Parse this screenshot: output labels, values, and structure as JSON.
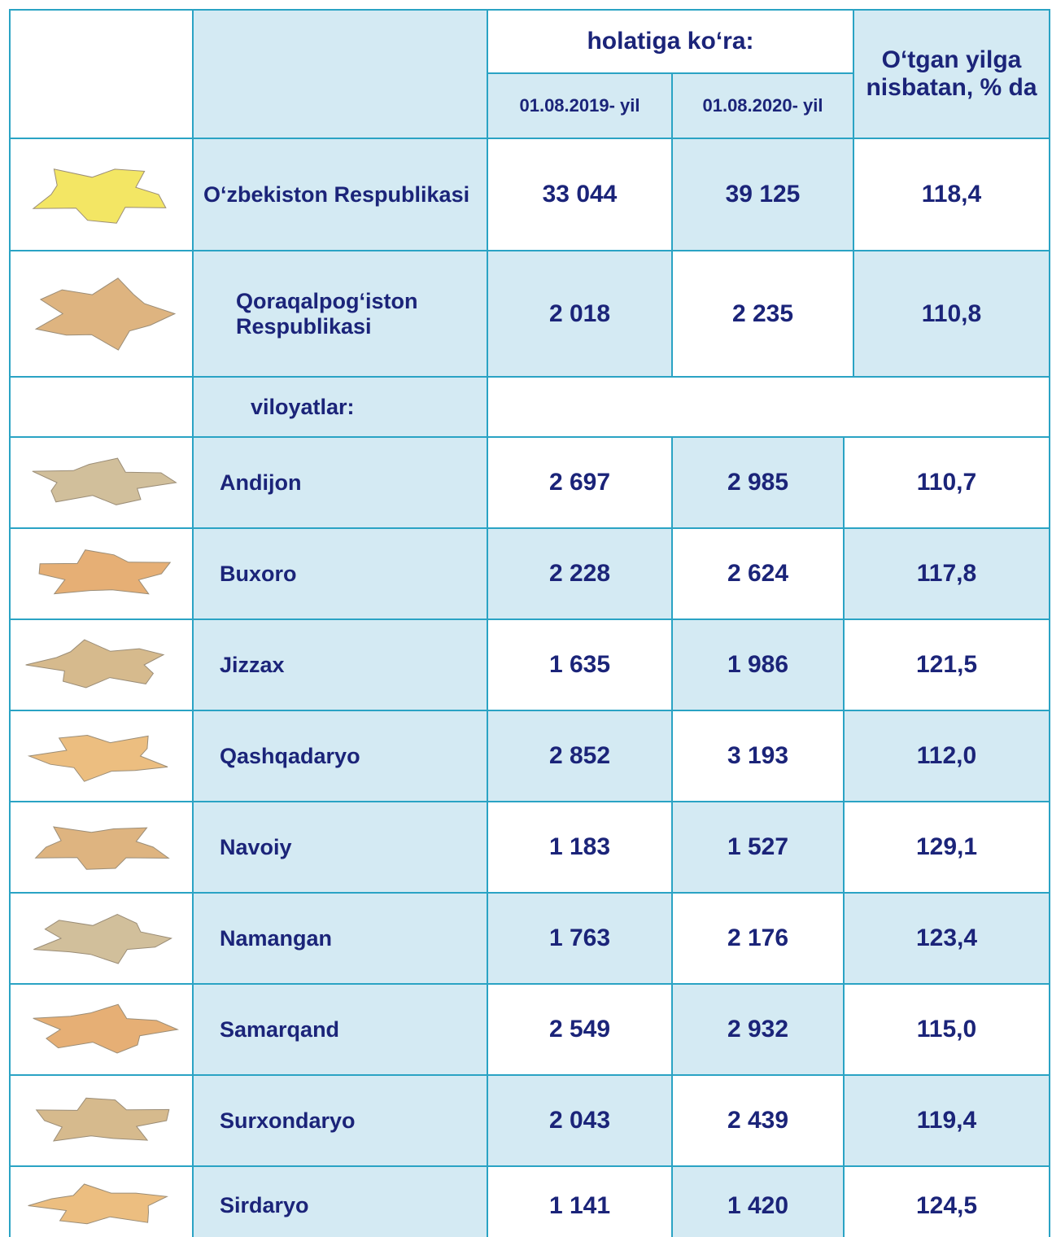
{
  "header": {
    "group": "holatiga ko‘ra:",
    "col1": "01.08.2019- yil",
    "col2": "01.08.2020- yil",
    "col3": "O‘tgan yilga nisbatan, % da"
  },
  "section_label": "viloyatlar:",
  "table": {
    "rows": [
      [
        "O‘zbekiston Respublikasi",
        "33 044",
        "39 125",
        "118,4"
      ],
      [
        "Qoraqalpog‘iston Respublikasi",
        "2 018",
        "2 235",
        "110,8"
      ],
      [
        "Andijon",
        "2 697",
        "2 985",
        "110,7"
      ],
      [
        "Buxoro",
        "2 228",
        "2 624",
        "117,8"
      ],
      [
        "Jizzax",
        "1 635",
        "1 986",
        "121,5"
      ],
      [
        "Qashqadaryo",
        "2 852",
        "3 193",
        "112,0"
      ],
      [
        "Navoiy",
        "1 183",
        "1 527",
        "129,1"
      ],
      [
        "Namangan",
        "1 763",
        "2 176",
        "123,4"
      ],
      [
        "Samarqand",
        "2 549",
        "2 932",
        "115,0"
      ],
      [
        "Surxondaryo",
        "2 043",
        "2 439",
        "119,4"
      ],
      [
        "Sirdaryo",
        "1 141",
        "1 420",
        "124,5"
      ]
    ]
  }
}
